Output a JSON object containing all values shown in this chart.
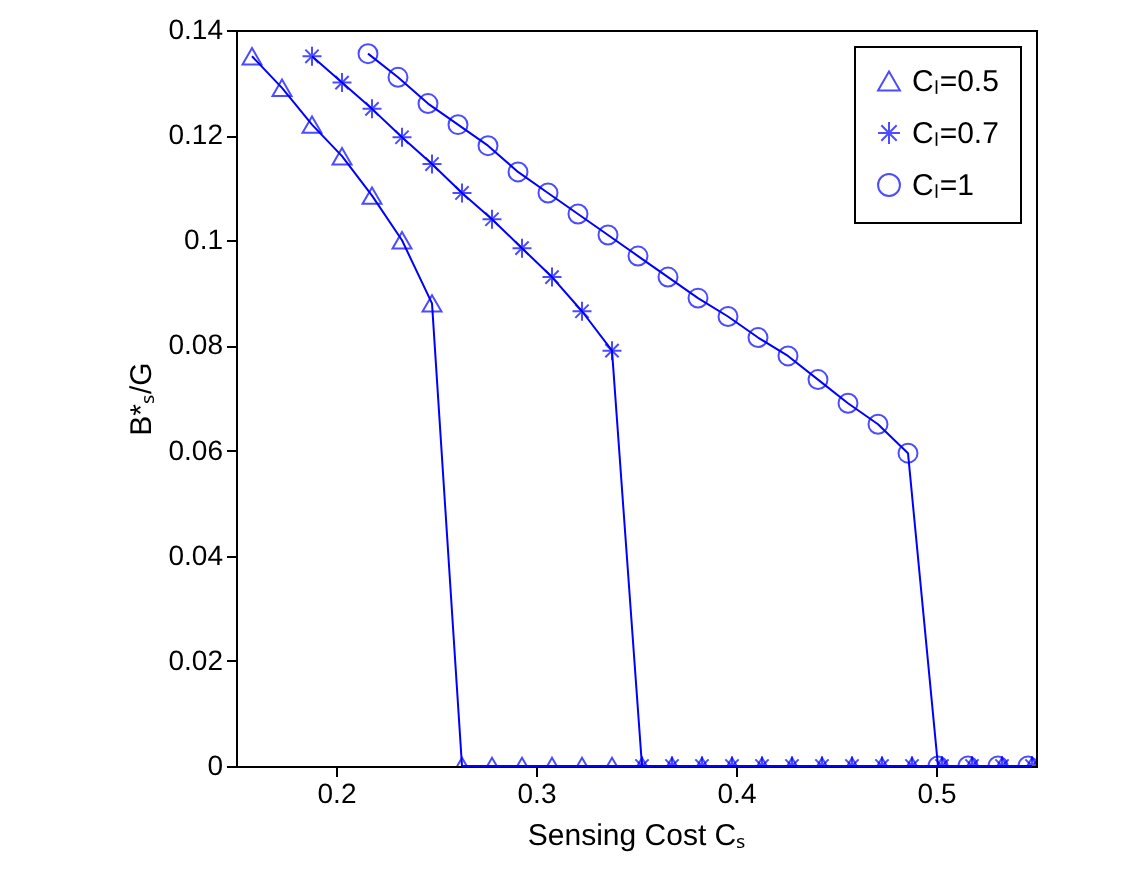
{
  "chart_data": {
    "type": "line",
    "xlabel": "Sensing Cost Cₛ",
    "ylabel": "B*ₛ/G",
    "xlim": [
      0.15,
      0.55
    ],
    "xticks": [
      0.2,
      0.3,
      0.4,
      0.5
    ],
    "ylim": [
      0,
      0.14
    ],
    "yticks": [
      0,
      0.02,
      0.04,
      0.06,
      0.08,
      0.1,
      0.12,
      0.14
    ],
    "legend": "top right",
    "line_style": "solid",
    "series": [
      {
        "name": "Cₗ=0.5",
        "color": "#0000ff",
        "marker": "triangle",
        "x": [
          0.158,
          0.173,
          0.188,
          0.203,
          0.218,
          0.233,
          0.248,
          0.263,
          0.278,
          0.293,
          0.308,
          0.323,
          0.338,
          0.353,
          0.368,
          0.383,
          0.398,
          0.413,
          0.428,
          0.443,
          0.458,
          0.473,
          0.488,
          0.503,
          0.518,
          0.533,
          0.548
        ],
        "values": [
          0.135,
          0.129,
          0.122,
          0.116,
          0.1085,
          0.1,
          0.088,
          0,
          0,
          0,
          0,
          0,
          0,
          0,
          0,
          0,
          0,
          0,
          0,
          0,
          0,
          0,
          0,
          0,
          0,
          0,
          0
        ]
      },
      {
        "name": "Cₗ=0.7",
        "color": "#0000ff",
        "marker": "cross",
        "x": [
          0.188,
          0.203,
          0.218,
          0.233,
          0.248,
          0.263,
          0.278,
          0.293,
          0.308,
          0.323,
          0.338,
          0.353,
          0.368,
          0.383,
          0.398,
          0.413,
          0.428,
          0.443,
          0.458,
          0.473,
          0.488,
          0.503,
          0.518,
          0.533,
          0.548
        ],
        "values": [
          0.135,
          0.13,
          0.125,
          0.1196,
          0.1145,
          0.109,
          0.104,
          0.0985,
          0.093,
          0.0865,
          0.079,
          0,
          0,
          0,
          0,
          0,
          0,
          0,
          0,
          0,
          0,
          0,
          0,
          0,
          0
        ]
      },
      {
        "name": "Cₗ=1",
        "color": "#0000ff",
        "marker": "circle",
        "x": [
          0.216,
          0.231,
          0.246,
          0.261,
          0.276,
          0.291,
          0.306,
          0.321,
          0.336,
          0.351,
          0.366,
          0.381,
          0.396,
          0.411,
          0.426,
          0.441,
          0.456,
          0.471,
          0.486,
          0.501,
          0.516,
          0.531,
          0.546
        ],
        "values": [
          0.1355,
          0.131,
          0.126,
          0.122,
          0.118,
          0.113,
          0.109,
          0.105,
          0.101,
          0.097,
          0.093,
          0.089,
          0.0855,
          0.0815,
          0.078,
          0.0735,
          0.069,
          0.065,
          0.0595,
          0,
          0,
          0,
          0
        ]
      }
    ]
  }
}
